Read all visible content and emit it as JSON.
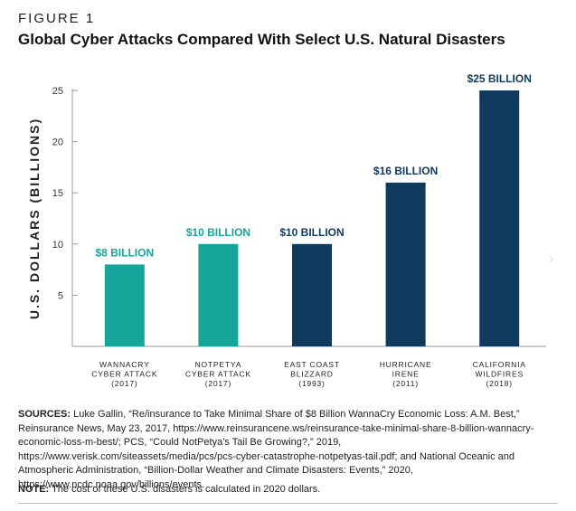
{
  "figure": {
    "label": "FIGURE 1",
    "title": "Global Cyber Attacks Compared With Select U.S. Natural Disasters"
  },
  "chart_data": {
    "type": "bar",
    "ylabel": "U.S. DOLLARS (BILLIONS)",
    "ylim": [
      0,
      25
    ],
    "yticks": [
      5,
      10,
      15,
      20,
      25
    ],
    "grid": false,
    "categories": [
      [
        "WANNACRY",
        "CYBER ATTACK",
        "(2017)"
      ],
      [
        "NOTPETYA",
        "CYBER ATTACK",
        "(2017)"
      ],
      [
        "EAST COAST",
        "BLIZZARD",
        "(1993)"
      ],
      [
        "HURRICANE",
        "IRENE",
        "(2011)"
      ],
      [
        "CALIFORNIA",
        "WILDFIRES",
        "(2018)"
      ]
    ],
    "values": [
      8,
      10,
      10,
      16,
      25
    ],
    "data_labels": [
      "$8 BILLION",
      "$10 BILLION",
      "$10 BILLION",
      "$16 BILLION",
      "$25 BILLION"
    ],
    "bar_groups": [
      "cyber",
      "cyber",
      "disaster",
      "disaster",
      "disaster"
    ],
    "colors": {
      "cyber": "#16a59b",
      "disaster": "#10395e"
    }
  },
  "sources": {
    "label": "SOURCES:",
    "text": " Luke Gallin, “Re/insurance to Take Minimal Share of $8 Billion WannaCry Economic Loss: A.M. Best,” Reinsurance News, May 23, 2017, https://www.reinsurancene.ws/reinsurance-take-minimal-share-8-billion-wannacry-economic-loss-m-best/; PCS, “Could NotPetya’s Tail Be Growing?,” 2019, https://www.verisk.com/siteassets/media/pcs/pcs-cyber-catastrophe-notpetyas-tail.pdf; and National Oceanic and Atmospheric Administration, “Billion-Dollar Weather and Climate Disasters: Events,” 2020, https://www.ncdc.noaa.gov/billions/events."
  },
  "note": {
    "label": "NOTE:",
    "text": " The cost of these U.S. disasters is calculated in 2020 dollars."
  },
  "icons": {
    "next": "chevron-right-icon"
  }
}
